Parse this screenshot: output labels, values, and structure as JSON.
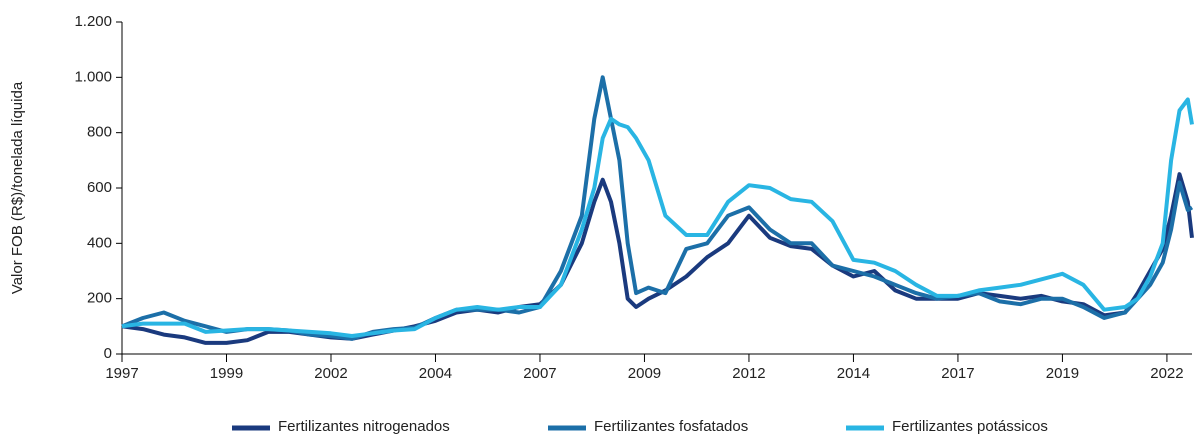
{
  "chart_data": {
    "type": "line",
    "y_label": "Valor FOB (R$)/tonelada líquida",
    "x": [
      1997,
      1997.5,
      1998,
      1998.5,
      1999,
      1999.5,
      2000,
      2000.5,
      2001,
      2001.5,
      2002,
      2002.5,
      2003,
      2003.5,
      2004,
      2004.5,
      2005,
      2005.5,
      2006,
      2006.5,
      2007,
      2007.5,
      2008,
      2008.3,
      2008.5,
      2008.7,
      2008.9,
      2009.1,
      2009.3,
      2009.6,
      2010,
      2010.5,
      2011,
      2011.5,
      2012,
      2012.5,
      2013,
      2013.5,
      2014,
      2014.5,
      2015,
      2015.5,
      2016,
      2016.5,
      2017,
      2017.5,
      2018,
      2018.5,
      2019,
      2019.5,
      2020,
      2020.5,
      2021,
      2021.3,
      2021.6,
      2021.9,
      2022.1,
      2022.3,
      2022.5,
      2022.6
    ],
    "series": [
      {
        "name": "Fertilizantes nitrogenados",
        "color": "#1a3a7e",
        "values": [
          100,
          90,
          70,
          60,
          40,
          40,
          50,
          80,
          80,
          70,
          60,
          55,
          70,
          85,
          100,
          120,
          150,
          160,
          150,
          170,
          180,
          250,
          400,
          550,
          630,
          550,
          400,
          200,
          170,
          200,
          230,
          280,
          350,
          400,
          500,
          420,
          390,
          380,
          320,
          280,
          300,
          230,
          200,
          200,
          200,
          220,
          210,
          200,
          210,
          190,
          180,
          140,
          150,
          220,
          300,
          380,
          500,
          650,
          550,
          420
        ]
      },
      {
        "name": "Fertilizantes fosfatados",
        "color": "#1c6fa8",
        "values": [
          100,
          130,
          150,
          120,
          100,
          80,
          90,
          90,
          85,
          70,
          65,
          55,
          80,
          90,
          95,
          130,
          160,
          160,
          160,
          150,
          170,
          300,
          500,
          850,
          1000,
          850,
          700,
          400,
          220,
          240,
          220,
          380,
          400,
          500,
          530,
          450,
          400,
          400,
          320,
          300,
          280,
          250,
          220,
          200,
          210,
          220,
          190,
          180,
          200,
          200,
          170,
          130,
          150,
          200,
          250,
          330,
          450,
          620,
          520,
          530
        ]
      },
      {
        "name": "Fertilizantes potássicos",
        "color": "#29b5e3",
        "values": [
          100,
          110,
          110,
          110,
          80,
          85,
          90,
          90,
          85,
          80,
          75,
          65,
          75,
          85,
          90,
          130,
          160,
          170,
          160,
          170,
          170,
          250,
          450,
          600,
          780,
          850,
          830,
          820,
          780,
          700,
          500,
          430,
          430,
          550,
          610,
          600,
          560,
          550,
          480,
          340,
          330,
          300,
          250,
          210,
          210,
          230,
          240,
          250,
          270,
          290,
          250,
          160,
          170,
          200,
          280,
          400,
          700,
          880,
          920,
          830
        ]
      }
    ],
    "xlim": [
      1997,
      2022.6
    ],
    "xticks": [
      {
        "value": 1997,
        "label": "1997"
      },
      {
        "value": 1999.5,
        "label": "1999"
      },
      {
        "value": 2002,
        "label": "2002"
      },
      {
        "value": 2004.5,
        "label": "2004"
      },
      {
        "value": 2007,
        "label": "2007"
      },
      {
        "value": 2009.5,
        "label": "2009"
      },
      {
        "value": 2012,
        "label": "2012"
      },
      {
        "value": 2014.5,
        "label": "2014"
      },
      {
        "value": 2017,
        "label": "2017"
      },
      {
        "value": 2019.5,
        "label": "2019"
      },
      {
        "value": 2022,
        "label": "2022"
      }
    ],
    "ylim": [
      0,
      1200
    ],
    "yticks": [
      0,
      200,
      400,
      600,
      800,
      {
        "value": 1000,
        "label": "1.000"
      },
      {
        "value": 1200,
        "label": "1.200"
      }
    ]
  }
}
